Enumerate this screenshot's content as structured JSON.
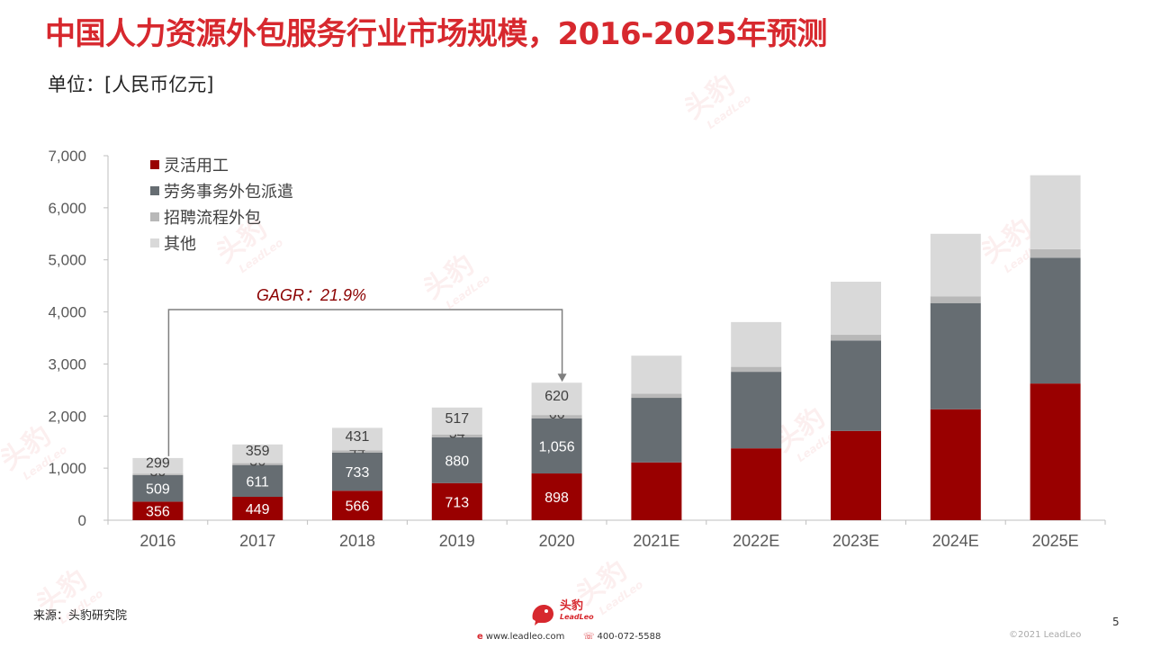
{
  "title": "中国人力资源外包服务行业市场规模，2016-2025年预测",
  "unit_label": "单位：[人民币亿元]",
  "watermark": {
    "cn": "头豹",
    "en": "LeadLeo"
  },
  "chart_data": {
    "type": "bar",
    "stacked": true,
    "categories": [
      "2016",
      "2017",
      "2018",
      "2019",
      "2020",
      "2021E",
      "2022E",
      "2023E",
      "2024E",
      "2025E"
    ],
    "ylim": [
      0,
      7000
    ],
    "yticks": [
      0,
      1000,
      2000,
      3000,
      4000,
      5000,
      6000,
      7000
    ],
    "ytick_labels": [
      "0",
      "1,000",
      "2,000",
      "3,000",
      "4,000",
      "5,000",
      "6,000",
      "7,000"
    ],
    "grid": false,
    "legend_position": "top-left",
    "series": [
      {
        "name": "灵活用工",
        "color": "#990000",
        "values": [
          356,
          449,
          566,
          713,
          898,
          1110,
          1380,
          1715,
          2130,
          2625
        ],
        "labels": [
          "356",
          "449",
          "566",
          "713",
          "898",
          "",
          "",
          "",
          "",
          ""
        ]
      },
      {
        "name": "劳务事务外包派遣",
        "color": "#666d72",
        "values": [
          509,
          611,
          733,
          880,
          1056,
          1240,
          1470,
          1735,
          2040,
          2415
        ],
        "labels": [
          "509",
          "611",
          "733",
          "880",
          "1,056",
          "",
          "",
          "",
          "",
          ""
        ]
      },
      {
        "name": "招聘流程外包",
        "color": "#b8b8b8",
        "values": [
          30,
          36,
          44,
          54,
          66,
          80,
          95,
          110,
          130,
          165
        ],
        "labels": [
          "30",
          "36",
          "44",
          "54",
          "66",
          "",
          "",
          "",
          "",
          ""
        ]
      },
      {
        "name": "其他",
        "color": "#d9d9d9",
        "values": [
          299,
          359,
          431,
          517,
          620,
          730,
          860,
          1020,
          1200,
          1420
        ],
        "labels": [
          "299",
          "359",
          "431",
          "517",
          "620",
          "",
          "",
          "",
          "",
          ""
        ]
      }
    ],
    "annotation": {
      "text": "GAGR：21.9%",
      "from": "2016",
      "to": "2020"
    }
  },
  "source": "来源：头豹研究院",
  "footer": {
    "brand_cn": "头豹",
    "brand_en": "LeadLeo",
    "website": "www.leadleo.com",
    "phone": "400-072-5588"
  },
  "page_number": "5",
  "copyright": "©2021 LeadLeo",
  "colors": {
    "accent": "#d7282e",
    "axis": "#bfbfbf",
    "annotation_line": "#7f7f7f"
  }
}
